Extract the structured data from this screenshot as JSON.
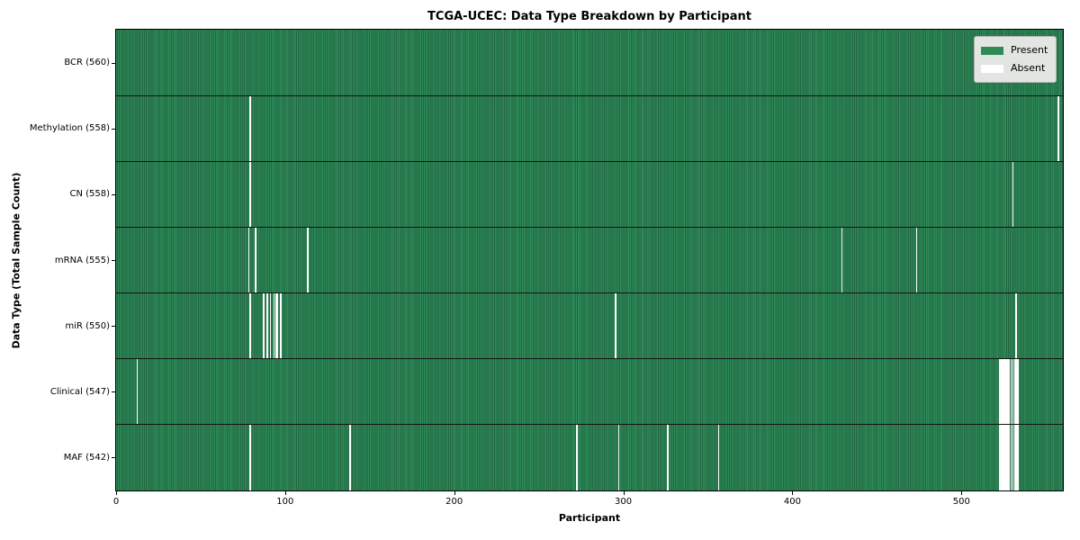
{
  "title": "TCGA-UCEC: Data Type Breakdown by Participant",
  "colors": {
    "present": "#2e8b57",
    "present_edge": "#226643",
    "absent": "#ffffff",
    "legend_bg": "#e2e5e1",
    "legend_border": "#b3b6b3"
  },
  "chart_data": {
    "type": "heatmap",
    "title": "TCGA-UCEC: Data Type Breakdown by Participant",
    "xlabel": "Participant",
    "ylabel": "Data Type (Total Sample Count)",
    "xlim": [
      0,
      560
    ],
    "x_ticks": [
      0,
      100,
      200,
      300,
      400,
      500
    ],
    "grid": false,
    "legend_position": "upper right",
    "legend_entries": [
      {
        "label": "Present",
        "color": "#2e8b57"
      },
      {
        "label": "Absent",
        "color": "#ffffff"
      }
    ],
    "n_participants": 560,
    "rows": [
      {
        "label": "BCR (560)",
        "data_type": "BCR",
        "sample_count": 560,
        "absent_participants": []
      },
      {
        "label": "Methylation (558)",
        "data_type": "Methylation",
        "sample_count": 558,
        "absent_participants": [
          79,
          557
        ]
      },
      {
        "label": "CN (558)",
        "data_type": "CN",
        "sample_count": 558,
        "absent_participants": [
          79,
          530
        ]
      },
      {
        "label": "mRNA (555)",
        "data_type": "mRNA",
        "sample_count": 555,
        "absent_participants": [
          78,
          82,
          113,
          429,
          473
        ]
      },
      {
        "label": "miR (550)",
        "data_type": "miR",
        "sample_count": 550,
        "absent_participants": [
          79,
          87,
          89,
          91,
          93,
          94,
          95,
          97,
          295,
          532
        ]
      },
      {
        "label": "Clinical (547)",
        "data_type": "Clinical",
        "sample_count": 547,
        "absent_participants": [
          12,
          522,
          523,
          524,
          525,
          526,
          527,
          528,
          529,
          530,
          531,
          532,
          533
        ]
      },
      {
        "label": "MAF (542)",
        "data_type": "MAF",
        "sample_count": 542,
        "absent_participants": [
          79,
          138,
          272,
          297,
          326,
          356,
          522,
          523,
          524,
          525,
          526,
          527,
          528,
          529,
          530,
          531,
          532,
          533
        ]
      }
    ]
  }
}
